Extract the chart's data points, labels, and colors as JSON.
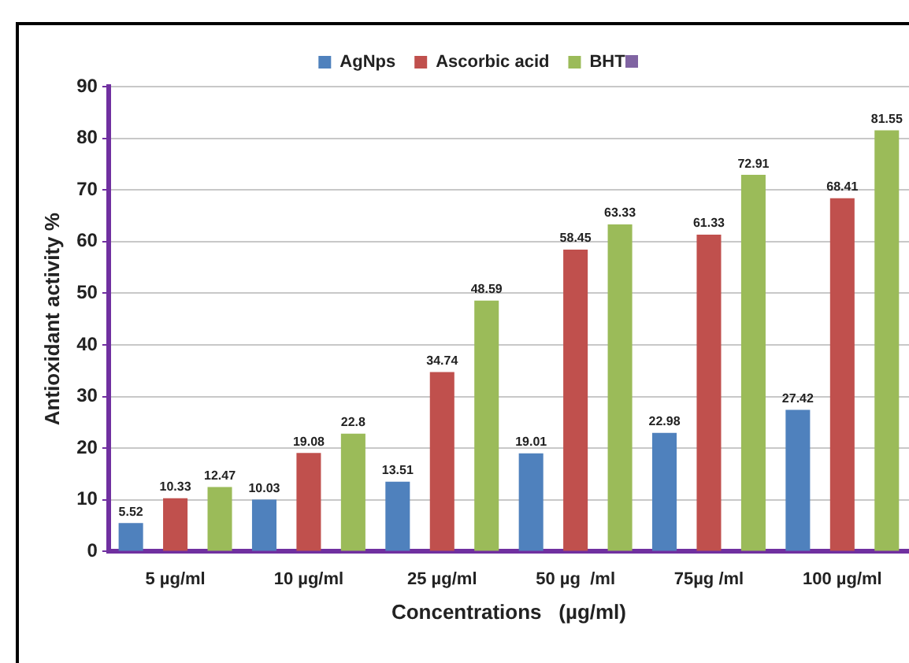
{
  "chart_data": {
    "type": "bar",
    "xlabel": "Concentrations   (µg/ml)",
    "ylabel": "Antioxidant activity %",
    "categories": [
      "5 µg/ml",
      "10 µg/ml",
      "25 µg/ml",
      "50 µg  /ml",
      "75µg /ml",
      "100 µg/ml"
    ],
    "series": [
      {
        "name": "AgNps",
        "color": "#4f81bd",
        "values": [
          5.52,
          10.03,
          13.51,
          19.01,
          22.98,
          27.42
        ]
      },
      {
        "name": "Ascorbic acid",
        "color": "#c0504d",
        "values": [
          10.33,
          19.08,
          34.74,
          58.45,
          61.33,
          68.41
        ]
      },
      {
        "name": "BHT",
        "color": "#9bbb59",
        "values": [
          12.47,
          22.8,
          48.59,
          63.33,
          72.91,
          81.55
        ]
      }
    ],
    "ylim": [
      0,
      90
    ],
    "yticks": [
      0,
      10,
      20,
      30,
      40,
      50,
      60,
      70,
      80,
      90
    ],
    "grid": "y",
    "legend": "top",
    "data_labels": true
  }
}
